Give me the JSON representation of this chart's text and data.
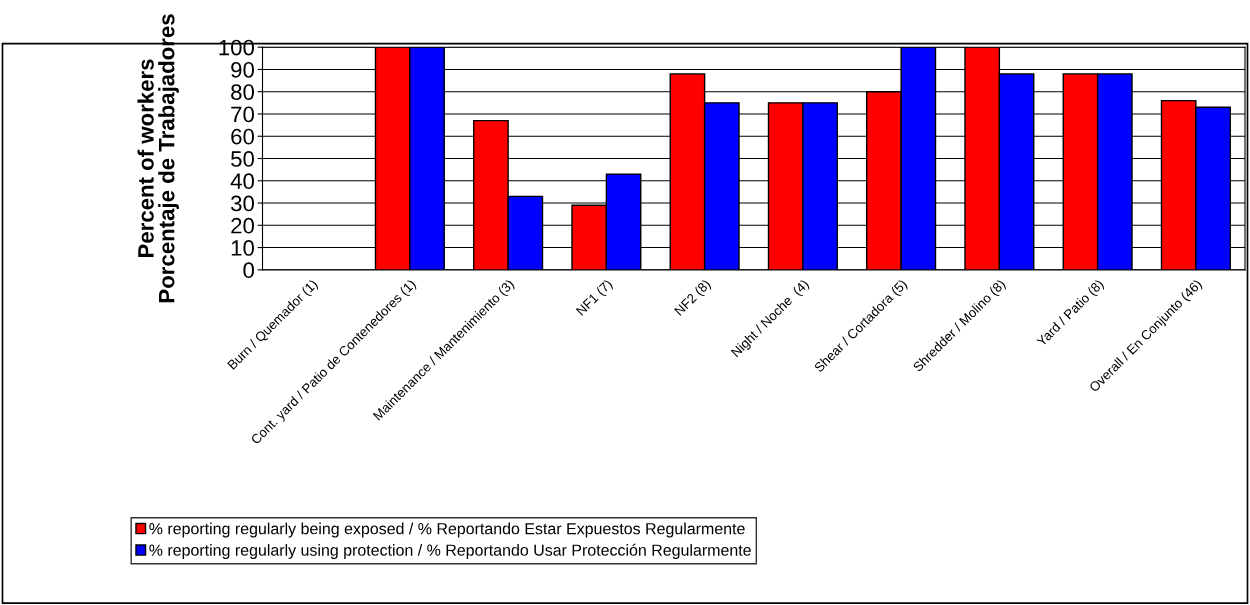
{
  "chart_data": {
    "type": "bar",
    "ylabel": "Percent of workers\nPorcentaje de Trabajadores",
    "categories": [
      "Burn / Quemador (1)",
      "Cont. yard / Patio de Contenedores (1)",
      "Maintenance / Mantenimiento (3)",
      "NF1 (7)",
      "NF2 (8)",
      "Night / Noche  (4)",
      "Shear / Cortadora (5)",
      "Shredder / Molino (8)",
      "Yard / Patio (8)",
      "Overall / En Conjunto (46)"
    ],
    "series": [
      {
        "name": "% reporting regularly being exposed / % Reportando Estar Expuestos Regularmente",
        "color": "#ff0000",
        "values": [
          null,
          100,
          67,
          29,
          88,
          75,
          80,
          100,
          88,
          76
        ]
      },
      {
        "name": "% reporting regularly using protection / % Reportando Usar Protección Regularmente",
        "color": "#0000ff",
        "values": [
          null,
          100,
          33,
          43,
          75,
          75,
          100,
          88,
          88,
          73
        ]
      }
    ],
    "ylim": [
      0,
      100
    ],
    "yticks": [
      0,
      10,
      20,
      30,
      40,
      50,
      60,
      70,
      80,
      90,
      100
    ],
    "grid": "y",
    "legend": "bottom"
  }
}
